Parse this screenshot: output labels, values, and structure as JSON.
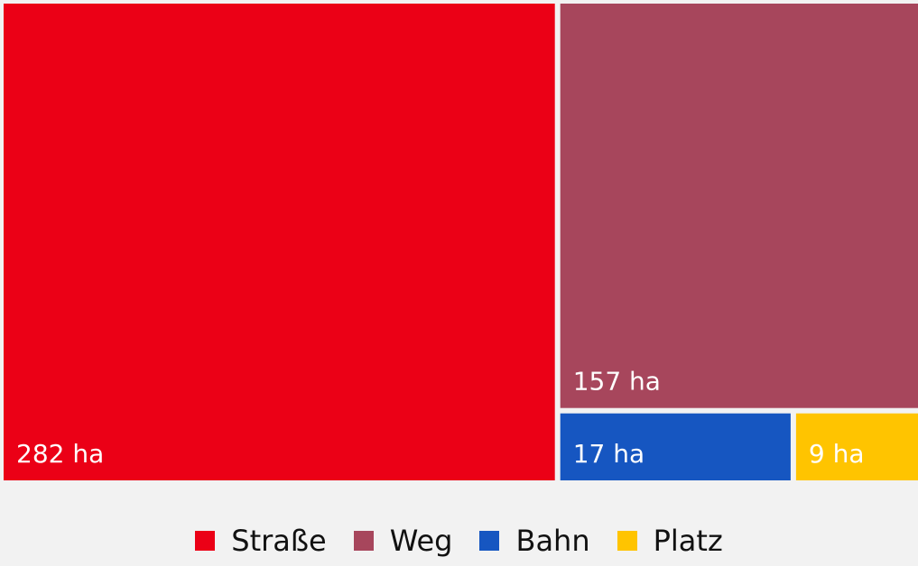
{
  "chart_data": {
    "type": "treemap",
    "unit": "ha",
    "series": [
      {
        "name": "Straße",
        "value": 282,
        "label": "282 ha",
        "color": "#eb0016"
      },
      {
        "name": "Weg",
        "value": 157,
        "label": "157 ha",
        "color": "#a7465c"
      },
      {
        "name": "Bahn",
        "value": 17,
        "label": "17 ha",
        "color": "#1656c1"
      },
      {
        "name": "Platz",
        "value": 9,
        "label": "9 ha",
        "color": "#ffc400"
      }
    ],
    "legend": {
      "position": "bottom-center"
    }
  }
}
